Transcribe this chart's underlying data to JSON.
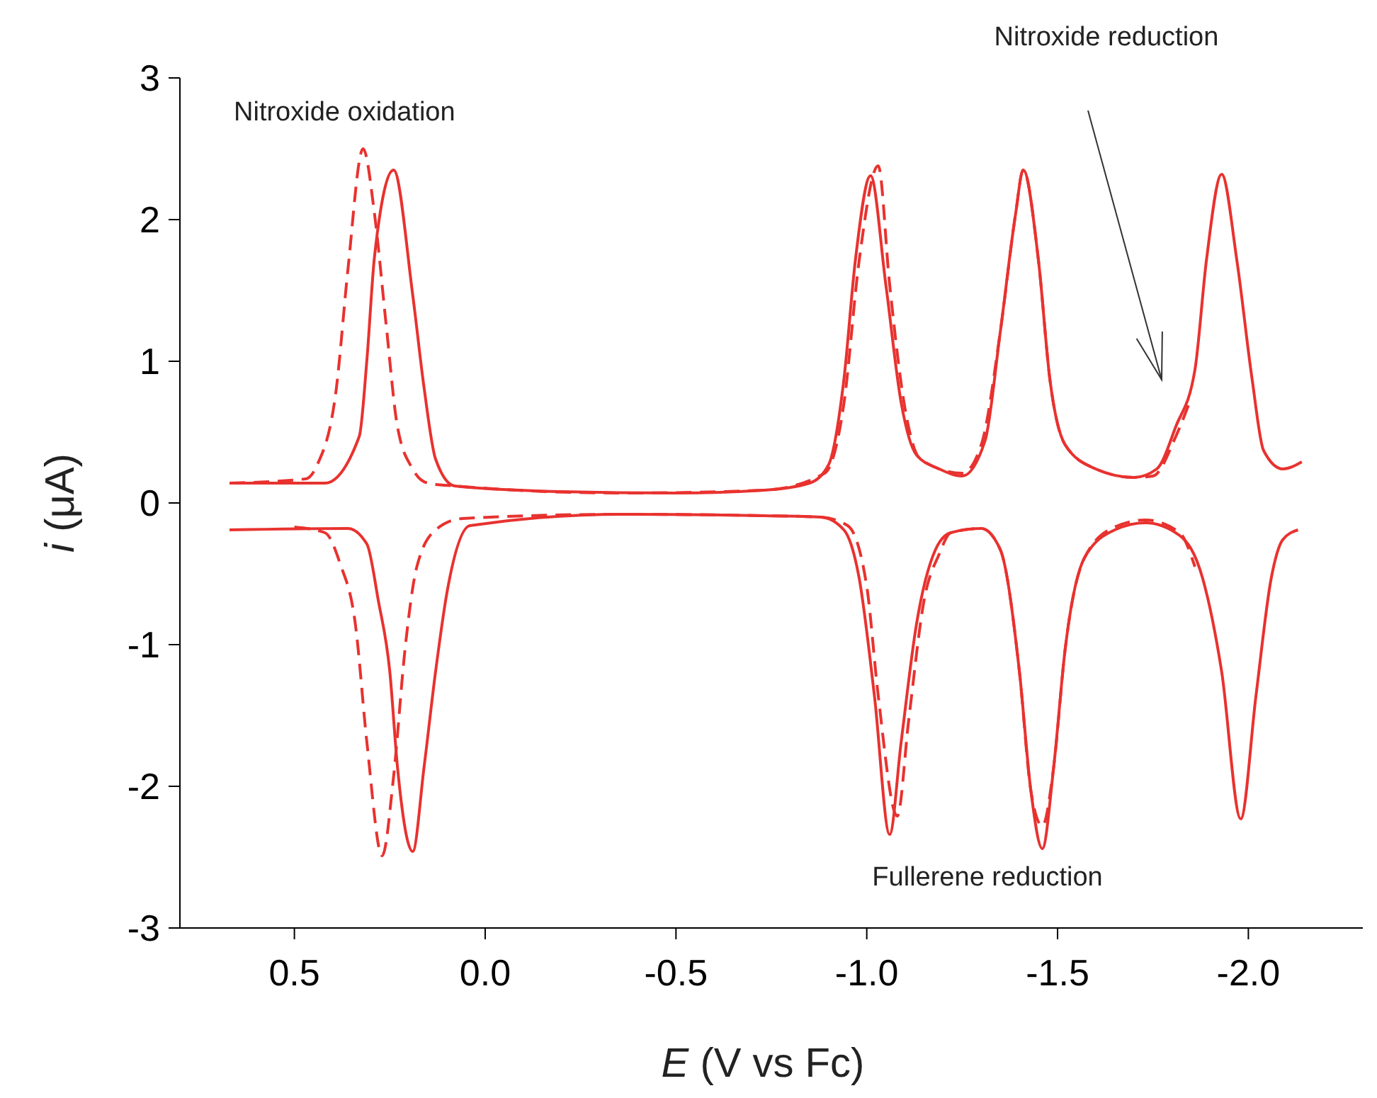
{
  "chart_data": {
    "type": "line",
    "xlabel": "E (V vs Fc)",
    "ylabel": "i (μA)",
    "xlim": [
      0.8,
      -2.3
    ],
    "ylim": [
      -3,
      3
    ],
    "xticks": [
      0.5,
      {
        "value": 0,
        "label": "0.0"
      },
      -0.5,
      {
        "value": -1,
        "label": "-1.0"
      },
      -1.5,
      {
        "value": -2,
        "label": "-2.0"
      }
    ],
    "yticks": [
      -3,
      -2,
      -1,
      0,
      1,
      2,
      3
    ],
    "grid": false,
    "legend": false,
    "marker": "none",
    "annotations": [
      "Nitroxide oxidation",
      "Nitroxide reduction",
      "Fullerene reduction"
    ],
    "series": [
      {
        "color": "#e8322f",
        "line_style": "solid",
        "x": [
          0.67,
          0.42,
          0.33,
          0.31,
          0.29,
          0.24,
          0.19,
          0.16,
          0.13,
          0.08,
          -0.2,
          -0.5,
          -0.73,
          -0.85,
          -0.9,
          -0.94,
          -0.97,
          -1.01,
          -1.05,
          -1.09,
          -1.13,
          -1.19,
          -1.25,
          -1.31,
          -1.35,
          -1.39,
          -1.41,
          -1.45,
          -1.48,
          -1.52,
          -1.6,
          -1.7,
          -1.76,
          -1.81,
          -1.86,
          -1.89,
          -1.93,
          -1.97,
          -2.01,
          -2.04,
          -2.09,
          -2.14
        ],
        "values": [
          0.14,
          0.14,
          0.47,
          1.01,
          1.74,
          2.35,
          1.47,
          0.81,
          0.31,
          0.12,
          0.08,
          0.07,
          0.09,
          0.14,
          0.27,
          0.87,
          1.71,
          2.31,
          1.54,
          0.71,
          0.34,
          0.24,
          0.19,
          0.44,
          1.21,
          2.04,
          2.35,
          1.71,
          0.87,
          0.41,
          0.24,
          0.18,
          0.24,
          0.54,
          0.94,
          1.71,
          2.32,
          1.71,
          0.87,
          0.37,
          0.24,
          0.29
        ]
      },
      {
        "color": "#e8322f",
        "line_style": "dashed",
        "x": [
          0.67,
          0.47,
          0.44,
          0.39,
          0.36,
          0.32,
          0.29,
          0.26,
          0.23,
          0.19,
          0.15,
          0.08,
          -0.36,
          -0.73,
          -0.89,
          -0.94,
          -0.98,
          -1.03,
          -1.06,
          -1.1,
          -1.14,
          -1.25,
          -1.3,
          -1.35,
          -1.39,
          -1.41,
          -1.45,
          -1.48,
          -1.52,
          -1.6,
          -1.7,
          -1.75,
          -1.81,
          -1.85
        ],
        "values": [
          0.14,
          0.17,
          0.27,
          0.81,
          1.64,
          2.5,
          2.04,
          1.27,
          0.54,
          0.24,
          0.14,
          0.12,
          0.07,
          0.09,
          0.21,
          0.7,
          1.71,
          2.38,
          1.54,
          0.67,
          0.31,
          0.21,
          0.41,
          1.21,
          2.04,
          2.35,
          1.71,
          0.87,
          0.41,
          0.24,
          0.18,
          0.19,
          0.47,
          0.74
        ]
      },
      {
        "color": "#e8322f",
        "line_style": "solid",
        "x": [
          0.67,
          0.36,
          0.31,
          0.28,
          0.25,
          0.23,
          0.19,
          0.16,
          0.13,
          0.1,
          0.04,
          -0.36,
          -0.73,
          -0.88,
          -0.94,
          -0.98,
          -1.02,
          -1.06,
          -1.09,
          -1.13,
          -1.18,
          -1.22,
          -1.3,
          -1.35,
          -1.4,
          -1.43,
          -1.46,
          -1.49,
          -1.52,
          -1.57,
          -1.65,
          -1.73,
          -1.82,
          -1.88,
          -1.93,
          -1.98,
          -2.02,
          -2.06,
          -2.09,
          -2.13
        ],
        "values": [
          -0.19,
          -0.18,
          -0.29,
          -0.69,
          -1.19,
          -1.86,
          -2.46,
          -1.86,
          -1.19,
          -0.63,
          -0.16,
          -0.08,
          -0.09,
          -0.1,
          -0.19,
          -0.53,
          -1.36,
          -2.34,
          -1.69,
          -0.86,
          -0.33,
          -0.21,
          -0.18,
          -0.33,
          -1.19,
          -2.03,
          -2.44,
          -1.86,
          -1.03,
          -0.39,
          -0.19,
          -0.14,
          -0.23,
          -0.53,
          -1.19,
          -2.23,
          -1.36,
          -0.53,
          -0.26,
          -0.19
        ]
      },
      {
        "color": "#e8322f",
        "line_style": "dashed",
        "x": [
          0.5,
          0.42,
          0.38,
          0.34,
          0.31,
          0.27,
          0.24,
          0.21,
          0.18,
          0.13,
          0.06,
          -0.36,
          -0.73,
          -0.88,
          -0.95,
          -1.0,
          -1.03,
          -1.08,
          -1.11,
          -1.15,
          -1.19,
          -1.22,
          -1.3,
          -1.35,
          -1.4,
          -1.43,
          -1.46,
          -1.49,
          -1.52,
          -1.57,
          -1.65,
          -1.73,
          -1.82,
          -1.86
        ],
        "values": [
          -0.17,
          -0.21,
          -0.43,
          -0.86,
          -1.69,
          -2.49,
          -1.93,
          -1.03,
          -0.46,
          -0.19,
          -0.11,
          -0.08,
          -0.09,
          -0.1,
          -0.16,
          -0.59,
          -1.36,
          -2.21,
          -1.53,
          -0.69,
          -0.36,
          -0.21,
          -0.18,
          -0.33,
          -1.19,
          -2.03,
          -2.28,
          -1.86,
          -1.03,
          -0.39,
          -0.17,
          -0.12,
          -0.21,
          -0.45
        ]
      }
    ]
  }
}
